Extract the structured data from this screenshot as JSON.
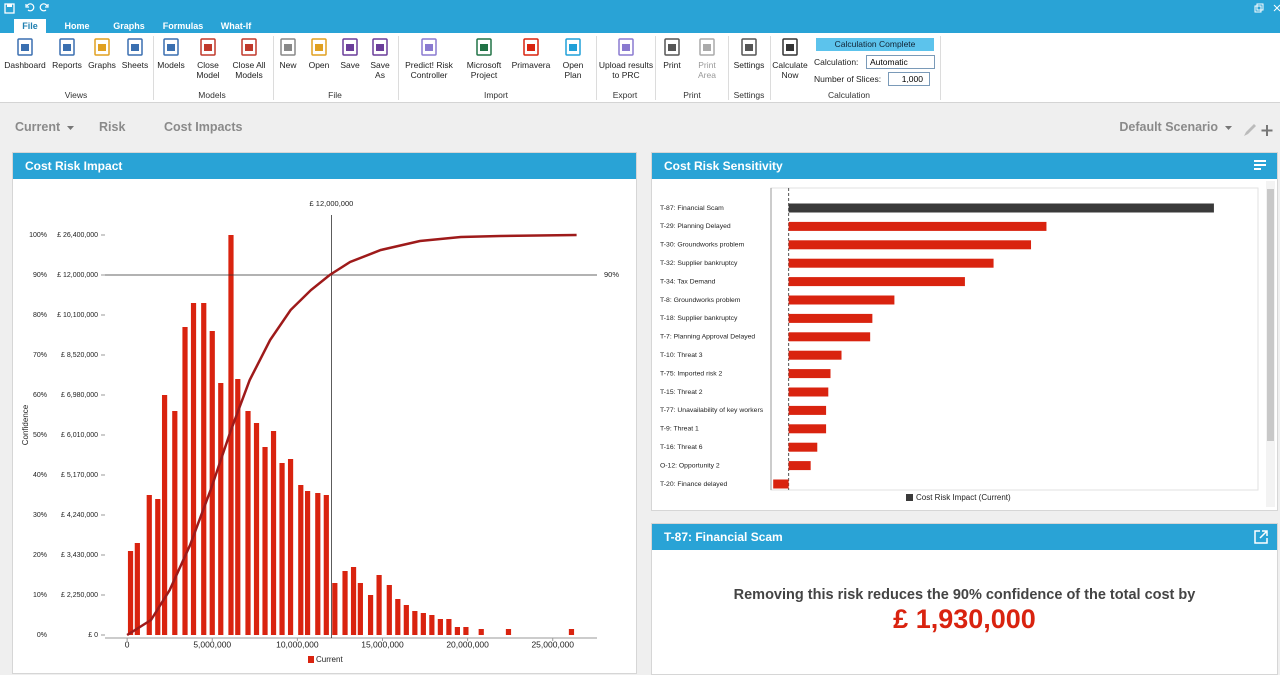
{
  "ribbon": {
    "tabs": [
      "File",
      "Home",
      "Graphs",
      "Formulas",
      "What-If"
    ],
    "groups": [
      {
        "label": "Views",
        "buttons": [
          "Dashboard",
          "Reports",
          "Graphs",
          "Sheets"
        ]
      },
      {
        "label": "Models",
        "buttons": [
          "Models",
          "Close Model",
          "Close All Models"
        ]
      },
      {
        "label": "File",
        "buttons": [
          "New",
          "Open",
          "Save",
          "Save As"
        ]
      },
      {
        "label": "Import",
        "buttons": [
          "Predict! Risk Controller",
          "Microsoft Project",
          "Primavera",
          "Open Plan"
        ]
      },
      {
        "label": "Export",
        "buttons": [
          "Upload results to PRC"
        ]
      },
      {
        "label": "Print",
        "buttons": [
          "Print",
          "Print Area"
        ]
      },
      {
        "label": "Settings",
        "buttons": [
          "Settings"
        ]
      },
      {
        "label": "Calculation",
        "buttons": [
          "Calculate Now"
        ]
      }
    ],
    "calc": {
      "status": "Calculation Complete",
      "calculation_label": "Calculation:",
      "calculation_value": "Automatic",
      "slices_label": "Number of Slices:",
      "slices_value": "1,000"
    }
  },
  "toolbar": {
    "items": [
      "Current",
      "Risk",
      "Cost Impacts"
    ],
    "scenario": "Default Scenario"
  },
  "chart_data": [
    {
      "type": "bar",
      "title": "Cost Risk Impact",
      "y_label": "Confidence",
      "xlim": [
        -1300000,
        27600000
      ],
      "ylim": [
        0,
        105
      ],
      "xticks": [
        0,
        {
          "value": 5000000,
          "label": "5,000,000"
        },
        {
          "value": 10000000,
          "label": "10,000,000"
        },
        {
          "value": 15000000,
          "label": "15,000,000"
        },
        {
          "value": 20000000,
          "label": "20,000,000"
        },
        {
          "value": 25000000,
          "label": "25,000,000"
        }
      ],
      "yticks": [
        {
          "value": 0,
          "label": "0%"
        },
        {
          "value": 10,
          "label": "10%"
        },
        {
          "value": 20,
          "label": "20%"
        },
        {
          "value": 30,
          "label": "30%"
        },
        {
          "value": 40,
          "label": "40%"
        },
        {
          "value": 50,
          "label": "50%"
        },
        {
          "value": 60,
          "label": "60%"
        },
        {
          "value": 70,
          "label": "70%"
        },
        {
          "value": 80,
          "label": "80%"
        },
        {
          "value": 90,
          "label": "90%"
        },
        {
          "value": 100,
          "label": "100%"
        }
      ],
      "ytick_costs": [
        "£ 0",
        "£ 2,250,000",
        "£ 3,430,000",
        "£ 4,240,000",
        "£ 5,170,000",
        "£ 6,010,000",
        "£ 6,980,000",
        "£ 8,520,000",
        "£ 10,100,000",
        "£ 12,000,000",
        "£ 26,400,000"
      ],
      "vline": {
        "value": 12000000,
        "label": "£ 12,000,000"
      },
      "hline": {
        "value": 90,
        "label": "90%"
      },
      "series": [
        {
          "name": "Current",
          "color": "#d9230f",
          "x": [
            200000,
            600000,
            1300000,
            1800000,
            2200000,
            2800000,
            3400000,
            3900000,
            4500000,
            5000000,
            5500000,
            6100000,
            6500000,
            7100000,
            7600000,
            8100000,
            8600000,
            9100000,
            9600000,
            10200000,
            10600000,
            11200000,
            11700000,
            12200000,
            12800000,
            13300000,
            13700000,
            14300000,
            14800000,
            15400000,
            15900000,
            16400000,
            16900000,
            17400000,
            17900000,
            18400000,
            18900000,
            19400000,
            19900000,
            20800000,
            22400000,
            26100000
          ],
          "values": [
            21,
            23,
            35,
            34,
            60,
            56,
            77,
            83,
            83,
            76,
            63,
            100,
            64,
            56,
            53,
            47,
            51,
            43,
            44,
            37.5,
            36,
            35.5,
            35,
            13,
            16,
            17,
            13,
            10,
            15,
            12.5,
            9,
            7.5,
            6,
            5.5,
            5,
            4,
            4,
            2,
            2,
            1.5,
            1.5,
            1.5
          ]
        }
      ],
      "curve": {
        "color": "#9e1a1a",
        "x": [
          0,
          1400000,
          2500000,
          3700000,
          4900000,
          6100000,
          7200000,
          8400000,
          9600000,
          10800000,
          11900000,
          13100000,
          14900000,
          17200000,
          19600000,
          21900000,
          26400000
        ],
        "values": [
          0,
          3.75,
          11.25,
          22.5,
          36.25,
          51.25,
          63.75,
          73.75,
          81.25,
          86.25,
          90,
          93.25,
          96.25,
          98.5,
          99.5,
          99.75,
          100
        ]
      }
    },
    {
      "type": "barh",
      "title": "Cost Risk Sensitivity",
      "xlim": [
        -80000,
        2130000
      ],
      "categories": [
        "T-87: Financial Scam",
        "T-29: Planning Delayed",
        "T-30: Groundworks problem",
        "T-32: Supplier bankruptcy",
        "T-34: Tax Demand",
        "T-8: Groundworks problem",
        "T-18: Supplier bankruptcy",
        "T-7: Planning Approval Delayed",
        "T-10: Threat 3",
        "T-75: Imported risk 2",
        "T-15: Threat 2",
        "T-77: Unavailability of key workers",
        "T-9: Threat 1",
        "T-16: Threat 6",
        "O-12: Opportunity 2",
        "T-20: Finance delayed"
      ],
      "series": [
        {
          "name": "Cost Risk Impact (Current)",
          "color": "#3a3a3a",
          "values": [
            1930000,
            1170000,
            1100000,
            930000,
            800000,
            480000,
            380000,
            370000,
            240000,
            190000,
            180000,
            170000,
            170000,
            130000,
            100000,
            -70000
          ],
          "colors": [
            "#3a3a3a",
            "#d9230f",
            "#d9230f",
            "#d9230f",
            "#d9230f",
            "#d9230f",
            "#d9230f",
            "#d9230f",
            "#d9230f",
            "#d9230f",
            "#d9230f",
            "#d9230f",
            "#d9230f",
            "#d9230f",
            "#d9230f",
            "#d9230f"
          ]
        }
      ]
    }
  ],
  "detail": {
    "title": "T-87: Financial Scam",
    "message": "Removing this risk reduces the 90% confidence of the total cost by",
    "amount": "£ 1,930,000"
  }
}
